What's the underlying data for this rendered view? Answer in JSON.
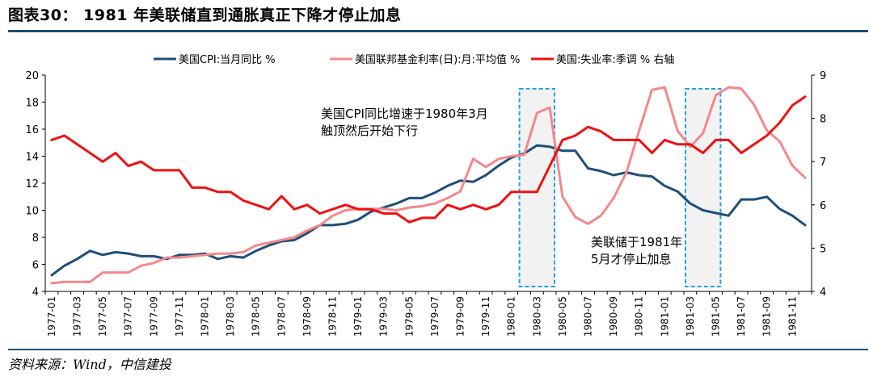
{
  "header": {
    "title": "图表30：  1981 年美联储直到通胀真正下降才停止加息"
  },
  "footer": {
    "source": "资料来源：Wind，中信建投"
  },
  "chart_data": {
    "type": "line",
    "x": [
      "1977-01",
      "1977-02",
      "1977-03",
      "1977-04",
      "1977-05",
      "1977-06",
      "1977-07",
      "1977-08",
      "1977-09",
      "1977-10",
      "1977-11",
      "1977-12",
      "1978-01",
      "1978-02",
      "1978-03",
      "1978-04",
      "1978-05",
      "1978-06",
      "1978-07",
      "1978-08",
      "1978-09",
      "1978-10",
      "1978-11",
      "1978-12",
      "1979-01",
      "1979-02",
      "1979-03",
      "1979-04",
      "1979-05",
      "1979-06",
      "1979-07",
      "1979-08",
      "1979-09",
      "1979-10",
      "1979-11",
      "1979-12",
      "1980-01",
      "1980-02",
      "1980-03",
      "1980-04",
      "1980-05",
      "1980-06",
      "1980-07",
      "1980-08",
      "1980-09",
      "1980-10",
      "1980-11",
      "1980-12",
      "1981-01",
      "1981-02",
      "1981-03",
      "1981-04",
      "1981-05",
      "1981-06",
      "1981-07",
      "1981-08",
      "1981-09",
      "1981-10",
      "1981-11",
      "1981-12"
    ],
    "x_tick_labels": [
      "1977-01",
      "1977-03",
      "1977-05",
      "1977-07",
      "1977-09",
      "1977-11",
      "1978-01",
      "1978-03",
      "1978-05",
      "1978-07",
      "1978-09",
      "1978-11",
      "1979-01",
      "1979-03",
      "1979-05",
      "1979-07",
      "1979-09",
      "1979-11",
      "1980-01",
      "1980-03",
      "1980-05",
      "1980-07",
      "1980-09",
      "1980-11",
      "1981-01",
      "1981-03",
      "1981-05",
      "1981-07",
      "1981-09",
      "1981-11"
    ],
    "y_left": {
      "min": 4,
      "max": 20,
      "ticks": [
        4,
        6,
        8,
        10,
        12,
        14,
        16,
        18,
        20
      ]
    },
    "y_right": {
      "min": 4,
      "max": 9,
      "ticks": [
        4,
        5,
        6,
        7,
        8,
        9
      ]
    },
    "series": [
      {
        "name": "美国CPI:当月同比 %",
        "axis": "left",
        "color": "#1f4e79",
        "values": [
          5.2,
          5.9,
          6.4,
          7.0,
          6.7,
          6.9,
          6.8,
          6.6,
          6.6,
          6.4,
          6.7,
          6.7,
          6.8,
          6.4,
          6.6,
          6.5,
          7.0,
          7.4,
          7.7,
          7.8,
          8.3,
          8.9,
          8.9,
          9.0,
          9.3,
          9.9,
          10.2,
          10.5,
          10.9,
          10.9,
          11.3,
          11.8,
          12.2,
          12.1,
          12.6,
          13.3,
          13.9,
          14.2,
          14.8,
          14.7,
          14.4,
          14.4,
          13.1,
          12.9,
          12.6,
          12.8,
          12.6,
          12.5,
          11.8,
          11.4,
          10.5,
          10.0,
          9.8,
          9.6,
          10.8,
          10.8,
          11.0,
          10.1,
          9.6,
          8.9
        ]
      },
      {
        "name": "美国联邦基金利率(日):月:平均值 %",
        "axis": "left",
        "color": "#f4888a",
        "values": [
          4.6,
          4.7,
          4.7,
          4.7,
          5.4,
          5.4,
          5.4,
          5.9,
          6.1,
          6.5,
          6.5,
          6.6,
          6.7,
          6.8,
          6.8,
          6.9,
          7.4,
          7.6,
          7.8,
          8.0,
          8.5,
          8.9,
          9.6,
          10.0,
          10.1,
          10.1,
          10.1,
          10.0,
          10.2,
          10.3,
          10.5,
          10.9,
          11.4,
          13.8,
          13.2,
          13.8,
          14.0,
          14.1,
          17.2,
          17.6,
          11.0,
          9.5,
          9.0,
          9.6,
          10.9,
          12.8,
          15.9,
          18.9,
          19.1,
          15.9,
          14.7,
          15.7,
          18.5,
          19.1,
          19.0,
          17.8,
          15.9,
          15.1,
          13.3,
          12.4
        ]
      },
      {
        "name": "美国:失业率:季调 % 右轴",
        "axis": "right",
        "color": "#ee1111",
        "values": [
          7.5,
          7.6,
          7.4,
          7.2,
          7.0,
          7.2,
          6.9,
          7.0,
          6.8,
          6.8,
          6.8,
          6.4,
          6.4,
          6.3,
          6.3,
          6.1,
          6.0,
          5.9,
          6.2,
          5.9,
          6.0,
          5.8,
          5.9,
          6.0,
          5.9,
          5.9,
          5.8,
          5.8,
          5.6,
          5.7,
          5.7,
          6.0,
          5.9,
          6.0,
          5.9,
          6.0,
          6.3,
          6.3,
          6.3,
          6.9,
          7.5,
          7.6,
          7.8,
          7.7,
          7.5,
          7.5,
          7.5,
          7.2,
          7.5,
          7.4,
          7.4,
          7.2,
          7.5,
          7.5,
          7.2,
          7.4,
          7.6,
          7.9,
          8.3,
          8.5
        ]
      }
    ],
    "highlights": [
      {
        "from": "1980-02",
        "to": "1980-04"
      },
      {
        "from": "1981-03",
        "to": "1981-05"
      }
    ],
    "annotations": [
      {
        "lines": [
          "美国CPI同比增速于1980年3月",
          "触顶然后开始下行"
        ]
      },
      {
        "lines": [
          "美联储于1981年",
          "5月才停止加息"
        ]
      }
    ],
    "legend_position": "top",
    "grid": false
  }
}
